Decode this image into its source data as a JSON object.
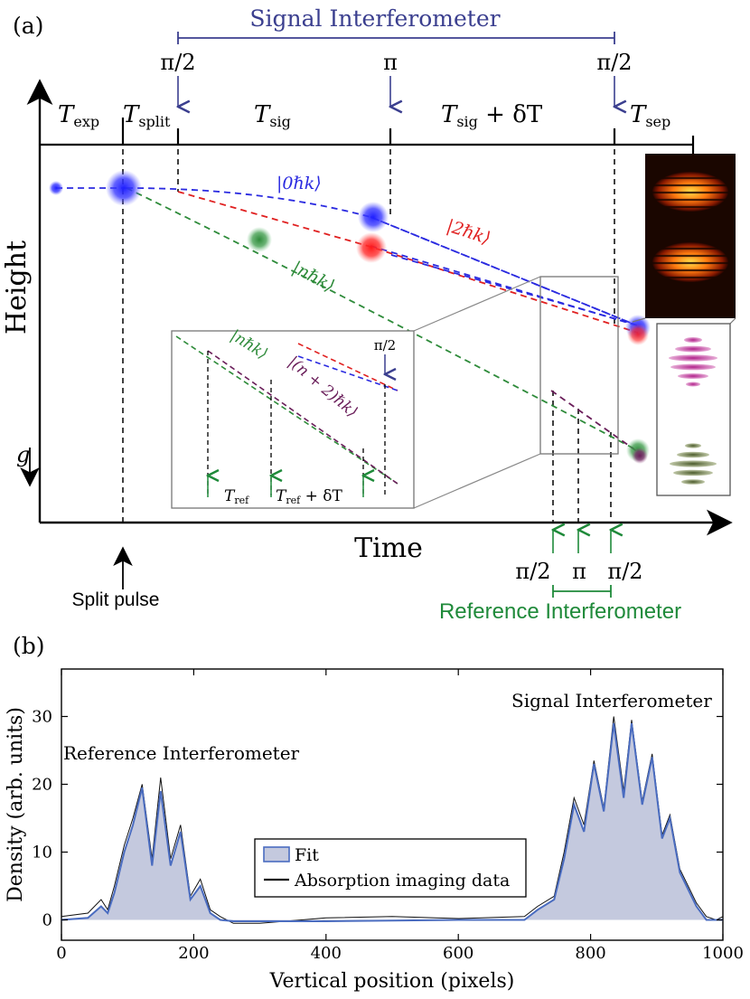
{
  "panel_a": {
    "label": "(a)",
    "signal_title": "Signal Interferometer",
    "reference_title": "Reference Interferometer",
    "pulses_top": [
      "π/2",
      "π",
      "π/2"
    ],
    "pulses_bottom": [
      "π/2",
      "π",
      "π/2"
    ],
    "inset_pulse": "π/2",
    "segments": {
      "t_exp": "T",
      "t_exp_sub": "exp",
      "t_split": "T",
      "t_split_sub": "split",
      "t_sig": "T",
      "t_sig_sub": "sig",
      "t_sig_dt": "T",
      "t_sig_dt_sub": "sig",
      "t_sig_dt_suffix": " + δT",
      "t_sep": "T",
      "t_sep_sub": "sep"
    },
    "axis_y": "Height",
    "axis_x": "Time",
    "gravity": "g",
    "split_pulse": "Split pulse",
    "states": {
      "zero": "|0ℏk⟩",
      "two": "|2ℏk⟩",
      "n": "|nℏk⟩",
      "inset_n": "|nℏk⟩",
      "inset_n2": "|(n + 2)ℏk⟩"
    },
    "inset_labels": {
      "t_ref": "T",
      "t_ref_sub": "ref",
      "t_ref_dt": "T",
      "t_ref_dt_sub": "ref",
      "t_ref_dt_suffix": " + δT"
    },
    "colors": {
      "signal": "#3b3f8f",
      "reference": "#1f8a3a",
      "zero_state": "#2a2ae0",
      "two_state": "#e02020",
      "n_state": "#2e8b3a",
      "n2_state": "#6a1e5a"
    }
  },
  "panel_b": {
    "label": "(b)",
    "signal_annotation": "Signal Interferometer",
    "reference_annotation": "Reference Interferometer",
    "chart_data": {
      "type": "area",
      "xlabel": "Vertical position (pixels)",
      "ylabel": "Density (arb. units)",
      "xlim": [
        0,
        1000
      ],
      "ylim": [
        -3,
        37
      ],
      "xticks": [
        0,
        200,
        400,
        600,
        800,
        1000
      ],
      "yticks": [
        0,
        10,
        20,
        30
      ],
      "grid": false,
      "legend_position": "center",
      "series": [
        {
          "name": "Fit",
          "kind": "filled-line",
          "color": "#4a6cc0",
          "fill": "#c4c9de",
          "x": [
            0,
            40,
            60,
            70,
            80,
            95,
            108,
            122,
            137,
            150,
            165,
            180,
            195,
            210,
            225,
            240,
            260,
            300,
            400,
            500,
            600,
            700,
            720,
            745,
            760,
            775,
            790,
            805,
            820,
            835,
            850,
            862,
            878,
            893,
            908,
            920,
            935,
            950,
            960,
            975,
            990,
            1000
          ],
          "y": [
            0,
            0.3,
            2,
            1,
            4,
            10,
            14,
            19.5,
            8,
            19,
            8,
            13,
            3,
            5,
            1,
            0,
            -0.2,
            -0.2,
            -0.2,
            -0.1,
            0,
            0,
            1.5,
            3,
            9,
            17,
            13,
            23,
            16,
            29,
            18,
            29,
            17,
            24,
            12,
            15,
            7,
            4,
            2,
            0,
            0,
            0
          ]
        },
        {
          "name": "Absorption imaging data",
          "kind": "line",
          "color": "#111111",
          "x": [
            0,
            40,
            60,
            70,
            80,
            95,
            108,
            122,
            137,
            150,
            165,
            180,
            195,
            210,
            225,
            240,
            260,
            300,
            400,
            500,
            600,
            700,
            720,
            745,
            760,
            775,
            790,
            805,
            820,
            835,
            850,
            862,
            878,
            893,
            908,
            920,
            935,
            950,
            960,
            975,
            990,
            1000
          ],
          "y": [
            0.5,
            1,
            3,
            1.5,
            5,
            11,
            15,
            20,
            9,
            21,
            9,
            14,
            3.5,
            6,
            1.5,
            0.5,
            -0.5,
            -0.5,
            0.3,
            0.5,
            0.2,
            0.5,
            2,
            3.5,
            10,
            18,
            14,
            23.5,
            16.5,
            30,
            19,
            29.5,
            17.5,
            24.5,
            12.5,
            15.5,
            7.5,
            4.5,
            2.5,
            0.5,
            0,
            0.5
          ]
        }
      ]
    }
  }
}
